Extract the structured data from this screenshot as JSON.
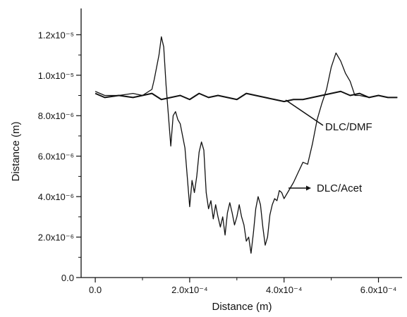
{
  "chart_data": {
    "type": "line",
    "title": "",
    "xlabel": "Distance (m)",
    "ylabel": "Distance (m)",
    "xlim": [
      -3e-05,
      0.00065
    ],
    "ylim": [
      0,
      1.33e-05
    ],
    "grid": false,
    "legend": "none",
    "x_ticks": [
      {
        "value": 0,
        "label": "0.0"
      },
      {
        "value": 0.0002,
        "label": "2.0x10⁻⁴"
      },
      {
        "value": 0.0004,
        "label": "4.0x10⁻⁴"
      },
      {
        "value": 0.0006,
        "label": "6.0x10⁻⁴"
      }
    ],
    "y_ticks": [
      {
        "value": 0,
        "label": "0.0"
      },
      {
        "value": 2e-06,
        "label": "2.0x10⁻⁶"
      },
      {
        "value": 4e-06,
        "label": "4.0x10⁻⁶"
      },
      {
        "value": 6e-06,
        "label": "6.0x10⁻⁶"
      },
      {
        "value": 8e-06,
        "label": "8.0x10⁻⁶"
      },
      {
        "value": 1e-05,
        "label": "1.0x10⁻⁵"
      },
      {
        "value": 1.2e-05,
        "label": "1.2x10⁻⁵"
      }
    ],
    "series": [
      {
        "name": "DLC/DMF",
        "color": "#111111",
        "x": [
          0,
          2e-05,
          5e-05,
          8e-05,
          0.0001,
          0.00012,
          0.00014,
          0.00016,
          0.00018,
          0.0002,
          0.00022,
          0.00024,
          0.00026,
          0.00028,
          0.0003,
          0.00032,
          0.00034,
          0.00036,
          0.00038,
          0.0004,
          0.00042,
          0.00044,
          0.00046,
          0.00048,
          0.0005,
          0.00052,
          0.00054,
          0.00056,
          0.00058,
          0.0006,
          0.00062,
          0.00064
        ],
        "y": [
          9.1e-06,
          8.9e-06,
          9e-06,
          8.9e-06,
          9e-06,
          9.1e-06,
          8.8e-06,
          8.9e-06,
          9e-06,
          8.8e-06,
          9.1e-06,
          8.9e-06,
          9e-06,
          8.9e-06,
          8.8e-06,
          9.1e-06,
          9e-06,
          8.9e-06,
          8.8e-06,
          8.7e-06,
          8.8e-06,
          8.8e-06,
          8.9e-06,
          9e-06,
          9.1e-06,
          9.2e-06,
          9e-06,
          9.1e-06,
          8.9e-06,
          9e-06,
          8.9e-06,
          8.9e-06
        ]
      },
      {
        "name": "DLC/Acet",
        "color": "#111111",
        "x": [
          0,
          2e-05,
          5e-05,
          8e-05,
          0.0001,
          0.00012,
          0.000125,
          0.00013,
          0.000135,
          0.00014,
          0.000145,
          0.00015,
          0.000155,
          0.00016,
          0.000165,
          0.00017,
          0.000175,
          0.00018,
          0.00019,
          0.0002,
          0.000205,
          0.00021,
          0.000215,
          0.00022,
          0.000225,
          0.00023,
          0.000235,
          0.00024,
          0.000245,
          0.00025,
          0.000255,
          0.00026,
          0.000265,
          0.00027,
          0.000275,
          0.00028,
          0.000285,
          0.00029,
          0.000295,
          0.0003,
          0.000305,
          0.00031,
          0.000315,
          0.00032,
          0.000325,
          0.00033,
          0.000335,
          0.00034,
          0.000345,
          0.00035,
          0.000355,
          0.00036,
          0.000365,
          0.00037,
          0.000375,
          0.00038,
          0.000385,
          0.00039,
          0.000395,
          0.0004,
          0.00041,
          0.00042,
          0.00043,
          0.00044,
          0.00045,
          0.00046,
          0.00047,
          0.00048,
          0.00049,
          0.0005,
          0.00051,
          0.00052,
          0.00053,
          0.00054,
          0.00055,
          0.00056,
          0.00058,
          0.0006,
          0.00062,
          0.00064
        ],
        "y": [
          9.2e-06,
          9e-06,
          9e-06,
          9.1e-06,
          9e-06,
          9.3e-06,
          9.8e-06,
          1.04e-05,
          1.1e-05,
          1.19e-05,
          1.14e-05,
          9.5e-06,
          8e-06,
          6.5e-06,
          8e-06,
          8.2e-06,
          7.8e-06,
          7.6e-06,
          6.4e-06,
          3.5e-06,
          4.8e-06,
          4.2e-06,
          5e-06,
          6.2e-06,
          6.7e-06,
          6.3e-06,
          4.2e-06,
          3.4e-06,
          3.8e-06,
          2.9e-06,
          3.6e-06,
          3e-06,
          2.5e-06,
          3e-06,
          2.1e-06,
          3.2e-06,
          3.7e-06,
          3.2e-06,
          2.6e-06,
          3e-06,
          3.6e-06,
          3e-06,
          2.6e-06,
          1.8e-06,
          2e-06,
          1.2e-06,
          2.2e-06,
          3.4e-06,
          4e-06,
          3.6e-06,
          2.5e-06,
          1.6e-06,
          2e-06,
          3.1e-06,
          3.6e-06,
          3.9e-06,
          3.8e-06,
          4.3e-06,
          4.2e-06,
          3.9e-06,
          4.3e-06,
          4.7e-06,
          5.2e-06,
          5.7e-06,
          5.6e-06,
          6.6e-06,
          7.8e-06,
          8.6e-06,
          9.3e-06,
          1.04e-05,
          1.11e-05,
          1.07e-05,
          1.01e-05,
          9.7e-06,
          9e-06,
          9e-06,
          8.9e-06,
          9e-06,
          8.9e-06,
          8.9e-06
        ]
      }
    ],
    "annotations": [
      {
        "text": "DLC/DMF",
        "points_to_series": "DLC/DMF"
      },
      {
        "text": "DLC/Acet",
        "points_to_series": "DLC/Acet"
      }
    ]
  }
}
